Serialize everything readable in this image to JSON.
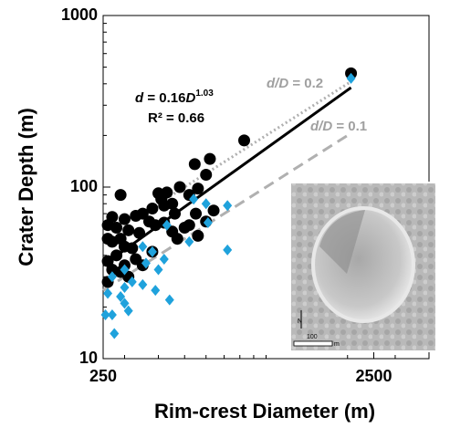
{
  "chart_data": {
    "type": "scatter",
    "x_label": "Rim-crest Diameter (m)",
    "y_label": "Crater Depth (m)",
    "xlog": true,
    "ylog": true,
    "xlim": [
      250,
      4000
    ],
    "ylim": [
      10,
      1000
    ],
    "xticks": [
      250,
      2500
    ],
    "x_minor_ticks": [
      300,
      400,
      500,
      600,
      700,
      800,
      900,
      1000,
      2000,
      3000,
      4000
    ],
    "yticks": [
      10,
      100,
      1000
    ],
    "y_minor_ticks": [
      20,
      30,
      40,
      50,
      60,
      70,
      80,
      90,
      200,
      300,
      400,
      500,
      600,
      700,
      800,
      900
    ],
    "series": [
      {
        "color": "#000000",
        "marker": "circle",
        "x": [
          2060,
          830,
          620,
          545,
          600,
          480,
          560,
          430,
          400,
          290,
          520,
          410,
          450,
          420,
          380,
          460,
          640,
          350,
          330,
          300,
          270,
          260,
          280,
          310,
          340,
          370,
          390,
          420,
          450,
          500,
          520,
          560,
          600,
          260,
          270,
          290,
          300,
          320,
          280,
          260,
          300,
          330,
          350,
          270,
          290,
          260,
          310,
          380,
          470,
          550
        ],
        "values": [
          460,
          187,
          146,
          136,
          118,
          100,
          98,
          93,
          92,
          90,
          90,
          85,
          80,
          78,
          75,
          70,
          73,
          70,
          68,
          65,
          67,
          60,
          58,
          56,
          54,
          63,
          60,
          62,
          55,
          58,
          60,
          52,
          63,
          50,
          48,
          50,
          45,
          44,
          40,
          37,
          35,
          38,
          35,
          33,
          32,
          28,
          30,
          42,
          50,
          70
        ]
      },
      {
        "color": "#1fa2dc",
        "marker": "diamond",
        "x": [
          2060,
          600,
          720,
          540,
          610,
          520,
          720,
          430,
          350,
          380,
          360,
          420,
          300,
          270,
          300,
          320,
          350,
          390,
          400,
          440,
          290,
          300,
          310,
          260,
          255,
          270,
          275
        ],
        "values": [
          430,
          80,
          78,
          85,
          62,
          48,
          43,
          60,
          45,
          42,
          36,
          38,
          33,
          30,
          26,
          28,
          27,
          25,
          33,
          22,
          23,
          21,
          19,
          24,
          18,
          18,
          14
        ]
      }
    ],
    "lines": [
      {
        "color": "#000000",
        "dash": "solid",
        "x": [
          250,
          2060
        ],
        "values": [
          35,
          380
        ]
      },
      {
        "color": "#b0b0b0",
        "dash": "dot",
        "x": [
          400,
          2060
        ],
        "values": [
          80,
          412
        ]
      },
      {
        "color": "#b0b0b0",
        "dash": "dash",
        "x": [
          250,
          2060
        ],
        "values": [
          25,
          206
        ]
      }
    ],
    "fit_equation": [
      "d",
      " = 0.16",
      "D",
      "1.03"
    ],
    "fit_r2": "R² = 0.66",
    "ratio_labels": [
      [
        "d/D",
        " = 0.2"
      ],
      [
        "d/D",
        " = 0.1"
      ]
    ],
    "inset": {
      "scale_label": "100",
      "scale_unit": "m",
      "north": "N"
    }
  }
}
